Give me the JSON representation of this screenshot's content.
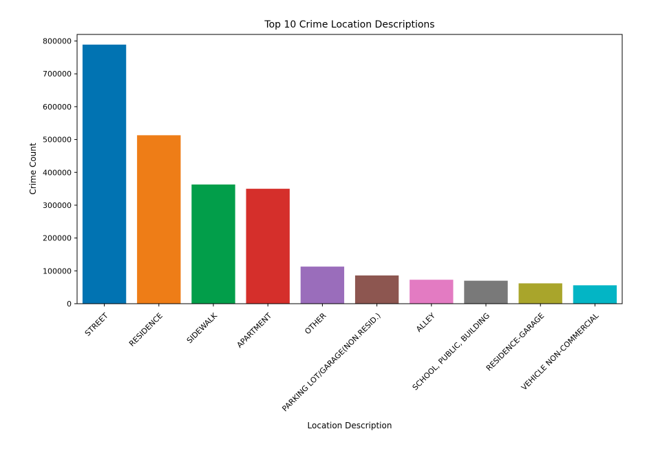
{
  "chart_data": {
    "type": "bar",
    "title": "Top 10 Crime Location Descriptions",
    "xlabel": "Location Description",
    "ylabel": "Crime Count",
    "categories": [
      "STREET",
      "RESIDENCE",
      "SIDEWALK",
      "APARTMENT",
      "OTHER",
      "PARKING LOT/GARAGE(NON.RESID.)",
      "ALLEY",
      "SCHOOL, PUBLIC, BUILDING",
      "RESIDENCE-GARAGE",
      "VEHICLE NON-COMMERCIAL"
    ],
    "values": [
      789000,
      513000,
      363000,
      350000,
      113000,
      86000,
      73000,
      70000,
      62000,
      56000
    ],
    "colors": [
      "#0173b2",
      "#ee7d17",
      "#029e4a",
      "#d52f2b",
      "#9a6dbb",
      "#8d5650",
      "#e37bc2",
      "#797979",
      "#a9a52b",
      "#03b5c5"
    ],
    "ylim": [
      0,
      820000
    ],
    "yticks": [
      0,
      100000,
      200000,
      300000,
      400000,
      500000,
      600000,
      700000,
      800000
    ],
    "ytick_labels": [
      "0",
      "100000",
      "200000",
      "300000",
      "400000",
      "500000",
      "600000",
      "700000",
      "800000"
    ],
    "grid": false,
    "legend": "none"
  }
}
